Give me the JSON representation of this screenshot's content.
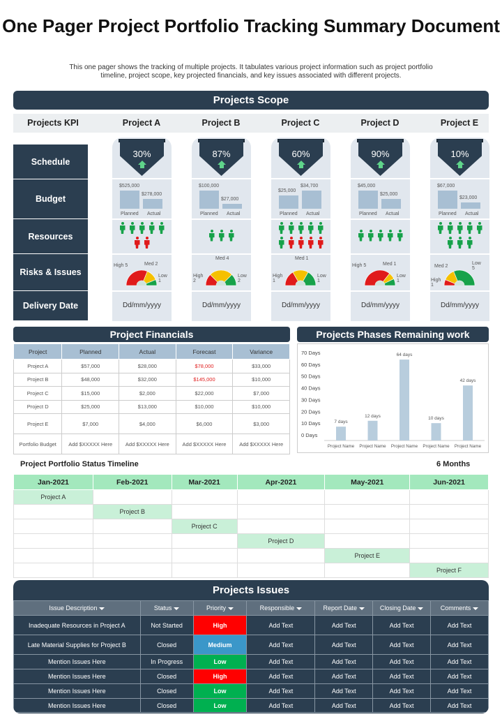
{
  "title": "One Pager Project Portfolio Tracking Summary Document",
  "subtitle": "This one pager shows the tracking of multiple projects. It tabulates various project information such as project portfolio timeline,  project scope, key projected financials, and key issues associated with different projects.",
  "scope": {
    "header": "Projects Scope",
    "kpi_label": "Projects KPI",
    "row_labels": [
      "Schedule",
      "Budget",
      "Resources",
      "Risks & Issues",
      "Delivery Date"
    ],
    "budget_labels": {
      "planned": "Planned",
      "actual": "Actual"
    },
    "colors": {
      "green": "#17a24a",
      "red": "#e01b1b",
      "yellow": "#f5c000",
      "arrow": "#5fd48a"
    },
    "projects": [
      {
        "name": "Project  A",
        "schedule": "30%",
        "planned": "$525,000",
        "actual": "$278,000",
        "planned_v": 525000,
        "actual_v": 278000,
        "resources": [
          [
            "g",
            "g",
            "g",
            "g",
            "g"
          ],
          [
            "r",
            "r"
          ]
        ],
        "risk": {
          "high": "High 5",
          "med": "Med 2",
          "low": "Low 1",
          "h": 5,
          "m": 2,
          "l": 1
        },
        "date": "Dd/mm/yyyy"
      },
      {
        "name": "Project  B",
        "schedule": "87%",
        "planned": "$100,000",
        "actual": "$27,000",
        "planned_v": 100000,
        "actual_v": 27000,
        "resources": [
          [
            "g",
            "g",
            "g"
          ]
        ],
        "risk": {
          "high": "High 2",
          "med": "Med 4",
          "low": "Low 2",
          "h": 2,
          "m": 4,
          "l": 2
        },
        "date": "Dd/mm/yyyy"
      },
      {
        "name": "Project  C",
        "schedule": "60%",
        "planned": "$25,000",
        "actual": "$34,700",
        "planned_v": 25000,
        "actual_v": 34700,
        "resources": [
          [
            "g",
            "g",
            "g",
            "g",
            "g"
          ],
          [
            "g",
            "r",
            "r",
            "r",
            "r"
          ]
        ],
        "risk": {
          "high": "High 1",
          "med": "Med 1",
          "low": "Low 1",
          "h": 1,
          "m": 1,
          "l": 1
        },
        "date": "Dd/mm/yyyy"
      },
      {
        "name": "Project  D",
        "schedule": "90%",
        "planned": "$45,000",
        "actual": "$25,000",
        "planned_v": 45000,
        "actual_v": 25000,
        "resources": [
          [
            "g",
            "g",
            "g",
            "g",
            "g"
          ]
        ],
        "risk": {
          "high": "High 5",
          "med": "Med 1",
          "low": "Low 1",
          "h": 5,
          "m": 1,
          "l": 1
        },
        "date": "Dd/mm/yyyy"
      },
      {
        "name": "Project  E",
        "schedule": "10%",
        "planned": "$67,000",
        "actual": "$23,000",
        "planned_v": 67000,
        "actual_v": 23000,
        "resources": [
          [
            "g",
            "g",
            "g",
            "g",
            "g"
          ],
          [
            "g",
            "g",
            "g"
          ]
        ],
        "risk": {
          "high": "High 1",
          "med": "Med 2",
          "low": "Low 5",
          "h": 1,
          "m": 2,
          "l": 5
        },
        "date": "Dd/mm/yyyy"
      }
    ]
  },
  "financials": {
    "header": "Project Financials",
    "columns": [
      "Project",
      "Planned",
      "Actual",
      "Forecast",
      "Variance"
    ],
    "rows": [
      [
        "Project A",
        "$57,000",
        "$28,000",
        "$78,000",
        "$33,000"
      ],
      [
        "Project B",
        "$48,000",
        "$32,000",
        "$145,000",
        "$10,000"
      ],
      [
        "Project C",
        "$15,000",
        "$2,000",
        "$22,000",
        "$7,000"
      ],
      [
        "Project D",
        "$25,000",
        "$13,000",
        "$10,000",
        "$10,000"
      ],
      [
        "Project E",
        "$7,000",
        "$4,000",
        "$6,000",
        "$3,000"
      ],
      [
        "Portfolio  Budget",
        "Add $XXXXX  Here",
        "Add $XXXXX  Here",
        "Add $XXXXX  Here",
        "Add $XXXXX  Here"
      ]
    ],
    "highlight_color": "#e02020"
  },
  "chart_data": {
    "type": "bar",
    "title": "Projects Phases Remaining work",
    "categories": [
      "Project Name",
      "Project Name",
      "Project Name",
      "Project Name",
      "Project Name"
    ],
    "values": [
      7,
      12,
      64,
      10,
      42
    ],
    "data_labels": [
      "7 days",
      "12 days",
      "64 days",
      "10 days",
      "42 days"
    ],
    "y_ticks": [
      "0 Days",
      "10 Days",
      "20 Days",
      "30 Days",
      "40 Days",
      "50 Days",
      "60 Days",
      "70 Days"
    ],
    "ylim": [
      0,
      70
    ],
    "bar_color": "#b8cddd",
    "grid": false
  },
  "timeline": {
    "title": "Project Portfolio  Status Timeline",
    "duration": "6 Months",
    "months": [
      "Jan-2021",
      "Feb-2021",
      "Mar-2021",
      "Apr-2021",
      "May-2021",
      "Jun-2021"
    ],
    "projects": [
      "Project A",
      "Project B",
      "Project C",
      "Project D",
      "Project E",
      "Project F"
    ]
  },
  "issues": {
    "header": "Projects Issues",
    "columns": [
      "Issue Description",
      "Status",
      "Priority",
      "Responsible",
      "Report Date",
      "Closing Date",
      "Comments"
    ],
    "priority_colors": {
      "High": "#ff0000",
      "Medium": "#3b97c9",
      "Low": "#00b050"
    },
    "rows": [
      [
        "Inadequate Resources in Project A",
        "Not Started",
        "High",
        "Add Text",
        "Add Text",
        "Add Text",
        "Add Text"
      ],
      [
        "Late Material  Supplies  for Project B",
        "Closed",
        "Medium",
        "Add Text",
        "Add Text",
        "Add Text",
        "Add Text"
      ],
      [
        "Mention  Issues Here",
        "In Progress",
        "Low",
        "Add Text",
        "Add Text",
        "Add Text",
        "Add Text"
      ],
      [
        "Mention  Issues Here",
        "Closed",
        "High",
        "Add Text",
        "Add Text",
        "Add Text",
        "Add Text"
      ],
      [
        "Mention  Issues Here",
        "Closed",
        "Low",
        "Add Text",
        "Add Text",
        "Add Text",
        "Add Text"
      ],
      [
        "Mention  Issues Here",
        "Closed",
        "Low",
        "Add Text",
        "Add Text",
        "Add Text",
        "Add Text"
      ]
    ]
  }
}
